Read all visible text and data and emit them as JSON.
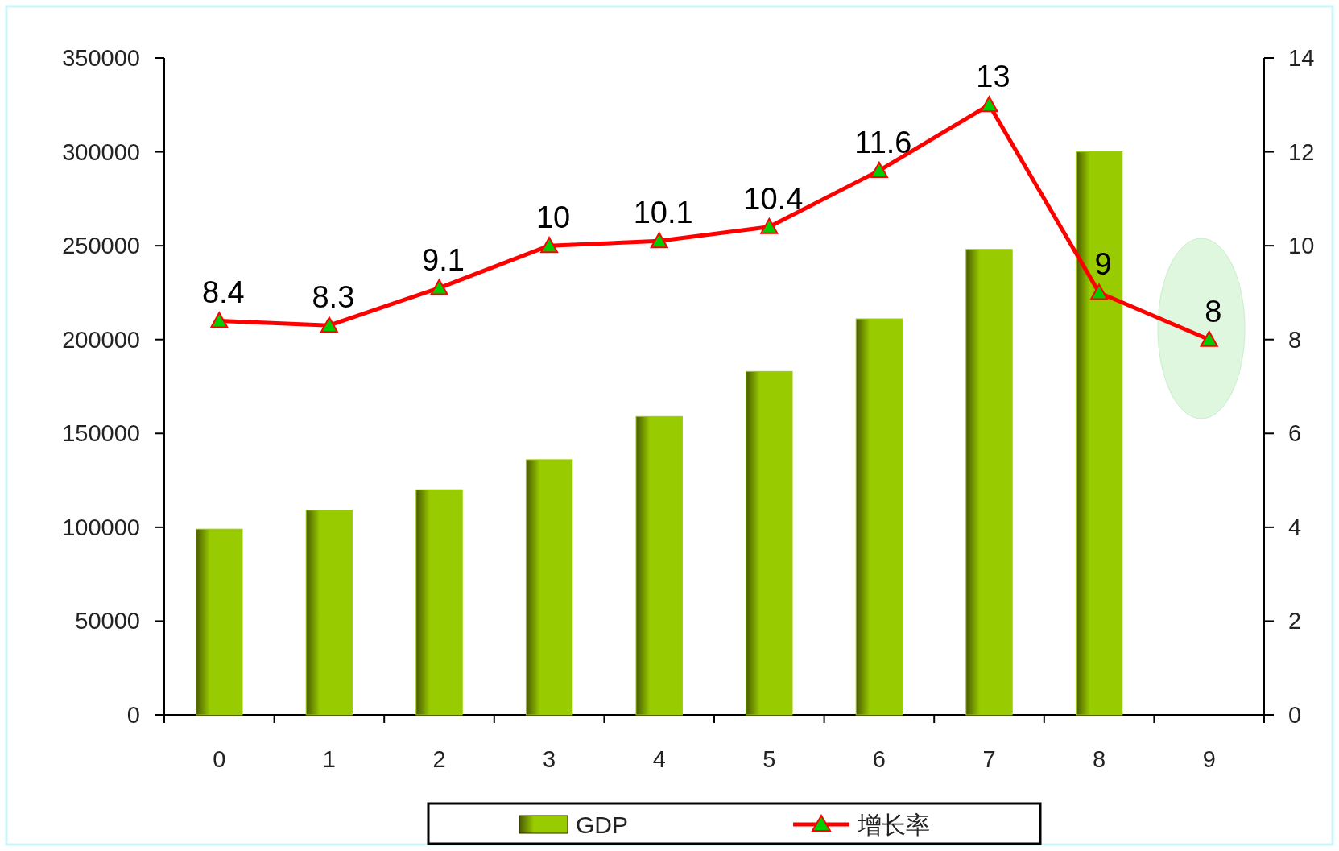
{
  "chart_data": {
    "type": "bar",
    "categories": [
      "0",
      "1",
      "2",
      "3",
      "4",
      "5",
      "6",
      "7",
      "8",
      "9"
    ],
    "series": [
      {
        "name": "GDP",
        "color": "#99cc00",
        "values": [
          99000,
          109000,
          120000,
          136000,
          159000,
          183000,
          211000,
          248000,
          300000,
          null
        ]
      },
      {
        "name": "增长率",
        "type": "line",
        "axis": "y2",
        "color": "#ff0000",
        "marker": "triangle",
        "data_labels": true,
        "values": [
          8.4,
          8.3,
          9.1,
          10,
          10.1,
          10.4,
          11.6,
          13,
          9,
          8
        ]
      }
    ],
    "ylim": [
      0,
      350000
    ],
    "yticks": [
      0,
      50000,
      100000,
      150000,
      200000,
      250000,
      300000,
      350000
    ],
    "y2lim": [
      0,
      14
    ],
    "y2ticks": [
      0,
      2,
      4,
      6,
      8,
      10,
      12,
      14
    ],
    "grid": false,
    "legend": "bottom"
  }
}
